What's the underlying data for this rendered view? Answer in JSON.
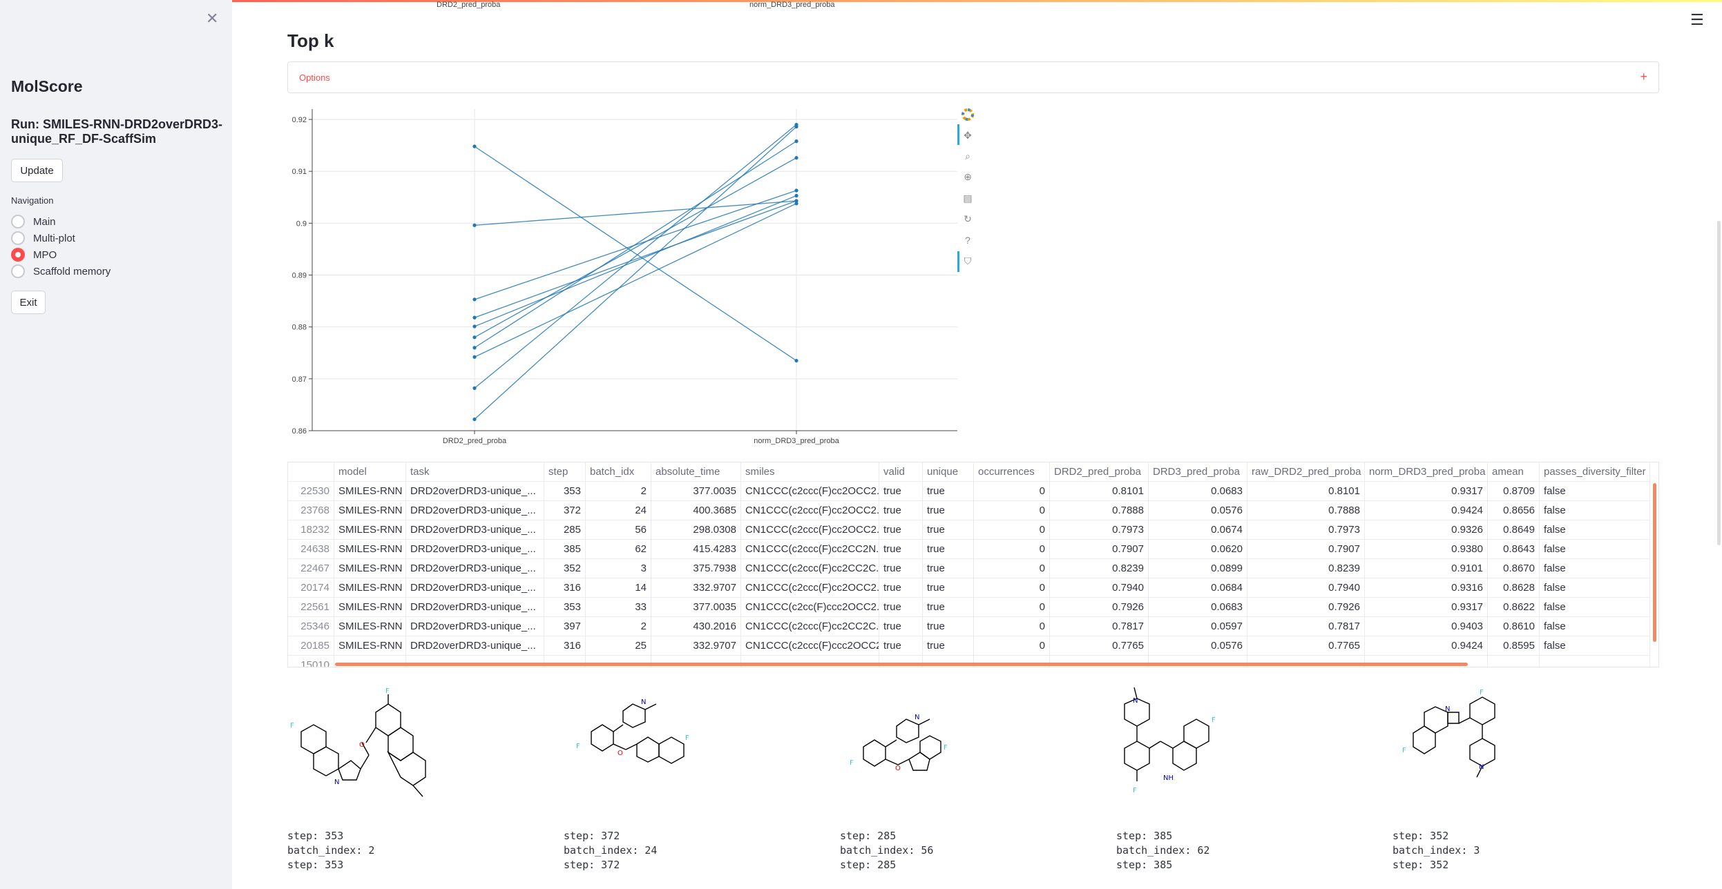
{
  "sidebar": {
    "app_title": "MolScore",
    "run_title": "Run: SMILES-RNN-DRD2overDRD3-unique_RF_DF-ScaffSim",
    "update_label": "Update",
    "nav_label": "Navigation",
    "nav_options": [
      "Main",
      "Multi-plot",
      "MPO",
      "Scaffold memory"
    ],
    "nav_selected": "MPO",
    "exit_label": "Exit",
    "close_icon": "close-icon"
  },
  "main": {
    "top_axis_labels": [
      "DRD2_pred_proba",
      "norm_DRD3_pred_proba"
    ],
    "title": "Top k",
    "options_label": "Options",
    "menu_icon": "hamburger-icon",
    "accent_color": "#ff4b4b"
  },
  "chart_data": {
    "type": "line",
    "x": [
      "DRD2_pred_proba",
      "norm_DRD3_pred_proba"
    ],
    "ylim": [
      0.86,
      0.922
    ],
    "yticks": [
      "0.92",
      "0.91",
      "0.9",
      "0.89",
      "0.88",
      "0.87",
      "0.86"
    ],
    "grid": true,
    "series": [
      {
        "values": [
          0.9148,
          0.8735
        ]
      },
      {
        "values": [
          0.8996,
          0.9043
        ]
      },
      {
        "values": [
          0.8853,
          0.9063
        ]
      },
      {
        "values": [
          0.8818,
          0.9043
        ]
      },
      {
        "values": [
          0.8801,
          0.9053
        ]
      },
      {
        "values": [
          0.878,
          0.9126
        ]
      },
      {
        "values": [
          0.876,
          0.9158
        ]
      },
      {
        "values": [
          0.8742,
          0.9038
        ]
      },
      {
        "values": [
          0.8682,
          0.919
        ]
      },
      {
        "values": [
          0.8622,
          0.9186
        ]
      }
    ],
    "toolbar_icons": [
      "bokeh-logo-icon",
      "pan-icon",
      "box-zoom-icon",
      "wheel-zoom-icon",
      "save-icon",
      "reset-icon",
      "help-icon",
      "hover-icon"
    ]
  },
  "table": {
    "columns": [
      "",
      "model",
      "task",
      "step",
      "batch_idx",
      "absolute_time",
      "smiles",
      "valid",
      "unique",
      "occurrences",
      "DRD2_pred_proba",
      "DRD3_pred_proba",
      "raw_DRD2_pred_proba",
      "norm_DRD3_pred_proba",
      "amean",
      "passes_diversity_filter"
    ],
    "rows": [
      [
        "22530",
        "SMILES-RNN",
        "DRD2overDRD3-unique_...",
        "353",
        "2",
        "377.0035",
        "CN1CCC(c2ccc(F)cc2OCC2...",
        "true",
        "true",
        "0",
        "0.8101",
        "0.0683",
        "0.8101",
        "0.9317",
        "0.8709",
        "false"
      ],
      [
        "23768",
        "SMILES-RNN",
        "DRD2overDRD3-unique_...",
        "372",
        "24",
        "400.3685",
        "CN1CCC(c2ccc(F)cc2OCC2...",
        "true",
        "true",
        "0",
        "0.7888",
        "0.0576",
        "0.7888",
        "0.9424",
        "0.8656",
        "false"
      ],
      [
        "18232",
        "SMILES-RNN",
        "DRD2overDRD3-unique_...",
        "285",
        "56",
        "298.0308",
        "CN1CCC(c2ccc(F)cc2OCC2...",
        "true",
        "true",
        "0",
        "0.7973",
        "0.0674",
        "0.7973",
        "0.9326",
        "0.8649",
        "false"
      ],
      [
        "24638",
        "SMILES-RNN",
        "DRD2overDRD3-unique_...",
        "385",
        "62",
        "415.4283",
        "CN1CCC(c2ccc(F)cc2CC2N...",
        "true",
        "true",
        "0",
        "0.7907",
        "0.0620",
        "0.7907",
        "0.9380",
        "0.8643",
        "false"
      ],
      [
        "22467",
        "SMILES-RNN",
        "DRD2overDRD3-unique_...",
        "352",
        "3",
        "375.7938",
        "CN1CCC(c2ccc(F)cc2CC2C...",
        "true",
        "true",
        "0",
        "0.8239",
        "0.0899",
        "0.8239",
        "0.9101",
        "0.8670",
        "false"
      ],
      [
        "20174",
        "SMILES-RNN",
        "DRD2overDRD3-unique_...",
        "316",
        "14",
        "332.9707",
        "CN1CCC(c2ccc(F)cc2OCC2...",
        "true",
        "true",
        "0",
        "0.7940",
        "0.0684",
        "0.7940",
        "0.9316",
        "0.8628",
        "false"
      ],
      [
        "22561",
        "SMILES-RNN",
        "DRD2overDRD3-unique_...",
        "353",
        "33",
        "377.0035",
        "CN1CCC(c2cc(F)ccc2OCC2...",
        "true",
        "true",
        "0",
        "0.7926",
        "0.0683",
        "0.7926",
        "0.9317",
        "0.8622",
        "false"
      ],
      [
        "25346",
        "SMILES-RNN",
        "DRD2overDRD3-unique_...",
        "397",
        "2",
        "430.2016",
        "CN1CCC(c2ccc(F)cc2CC2C...",
        "true",
        "true",
        "0",
        "0.7817",
        "0.0597",
        "0.7817",
        "0.9403",
        "0.8610",
        "false"
      ],
      [
        "20185",
        "SMILES-RNN",
        "DRD2overDRD3-unique_...",
        "316",
        "25",
        "332.9707",
        "CN1CCC(c2ccc(F)ccc2OCC2...",
        "true",
        "true",
        "0",
        "0.7765",
        "0.0576",
        "0.7765",
        "0.9424",
        "0.8595",
        "false"
      ],
      [
        "15010",
        "",
        "",
        "",
        "",
        "",
        "",
        "",
        "",
        "",
        "",
        "",
        "",
        "",
        "",
        ""
      ]
    ]
  },
  "molecules": [
    {
      "step": "step: 353",
      "batch": "batch_index: 2",
      "step2": "step: 353"
    },
    {
      "step": "step: 372",
      "batch": "batch_index: 24",
      "step2": "step: 372"
    },
    {
      "step": "step: 285",
      "batch": "batch_index: 56",
      "step2": "step: 285"
    },
    {
      "step": "step: 385",
      "batch": "batch_index: 62",
      "step2": "step: 385"
    },
    {
      "step": "step: 352",
      "batch": "batch_index: 3",
      "step2": "step: 352"
    }
  ]
}
